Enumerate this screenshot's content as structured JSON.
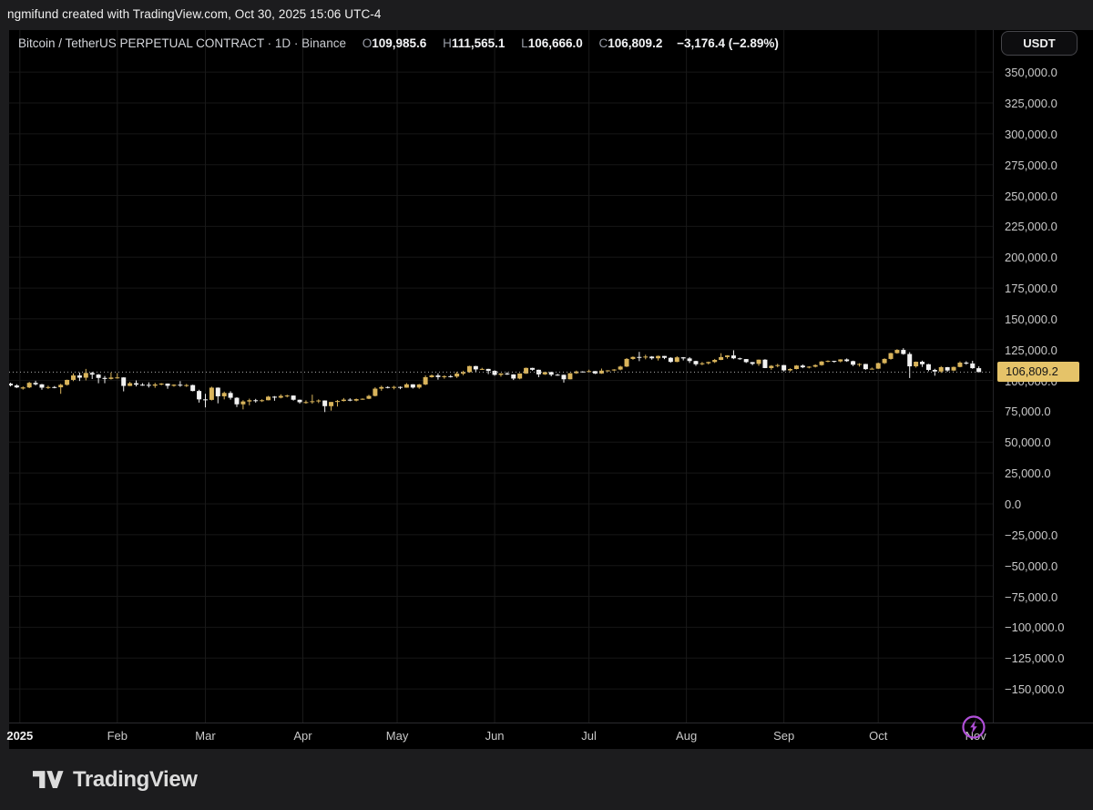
{
  "attribution": "ngmifund created with TradingView.com, Oct 30, 2025 15:06 UTC-4",
  "header": {
    "symbol": "Bitcoin / TetherUS PERPETUAL CONTRACT",
    "separator": "·",
    "interval": "1D",
    "exchange": "Binance",
    "ohlc": {
      "o_label": "O",
      "o": "109,985.6",
      "h_label": "H",
      "h": "111,565.1",
      "l_label": "L",
      "l": "106,666.0",
      "c_label": "C",
      "c": "106,809.2",
      "change": "−3,176.4 (−2.89%)"
    }
  },
  "currency_button": {
    "label": "USDT"
  },
  "price_scale": {
    "labels": [
      "350,000.0",
      "325,000.0",
      "300,000.0",
      "275,000.0",
      "250,000.0",
      "225,000.0",
      "200,000.0",
      "175,000.0",
      "150,000.0",
      "125,000.0",
      "100,000.0",
      "75,000.0",
      "50,000.0",
      "25,000.0",
      "0.0",
      "−25,000.0",
      "−50,000.0",
      "−75,000.0",
      "−100,000.0",
      "−125,000.0",
      "−150,000.0"
    ],
    "current_price_label": "106,809.2"
  },
  "footer": {
    "brand": "TradingView"
  },
  "colors": {
    "up_candle": "#D9B45B",
    "down_candle": "#F2F2F2",
    "price_tag_bg": "#E5C369",
    "grid": "#161616",
    "dotted_price_line": "#ABABAB",
    "boost_purple": "#B04FD8",
    "chart_bg": "#000000",
    "frame_bg": "#1C1C1E"
  },
  "chart_data": {
    "type": "candlestick",
    "title": "Bitcoin / TetherUS PERPETUAL CONTRACT",
    "exchange": "Binance",
    "timeframe": "1D",
    "quote_currency": "USDT",
    "current_price": 106809.2,
    "last_change": -3176.4,
    "last_change_pct": -2.89,
    "price_axis": {
      "min": -150000,
      "max": 350000,
      "step": 25000
    },
    "time_axis_months": [
      {
        "label": "2025",
        "day": 0,
        "major": true
      },
      {
        "label": "Feb",
        "day": 31
      },
      {
        "label": "Mar",
        "day": 59
      },
      {
        "label": "Apr",
        "day": 90
      },
      {
        "label": "May",
        "day": 120
      },
      {
        "label": "Jun",
        "day": 151
      },
      {
        "label": "Jul",
        "day": 181
      },
      {
        "label": "Aug",
        "day": 212
      },
      {
        "label": "Sep",
        "day": 243
      },
      {
        "label": "Oct",
        "day": 273
      },
      {
        "label": "Nov",
        "day": 304
      }
    ],
    "start_date": "2024-12-28",
    "interval_days": 2,
    "candles": [
      [
        97500,
        98200,
        95200,
        96000
      ],
      [
        96000,
        97000,
        93900,
        94400
      ],
      [
        93500,
        95200,
        92600,
        94400
      ],
      [
        94400,
        98900,
        93800,
        98100
      ],
      [
        98100,
        99800,
        96000,
        96900
      ],
      [
        96900,
        97200,
        92500,
        94200
      ],
      [
        94200,
        95800,
        93200,
        94700
      ],
      [
        94700,
        95500,
        93700,
        94500
      ],
      [
        94500,
        97300,
        89200,
        96500
      ],
      [
        96500,
        100700,
        95900,
        100500
      ],
      [
        100500,
        105800,
        99500,
        104100
      ],
      [
        104100,
        106400,
        99600,
        102300
      ],
      [
        102300,
        109400,
        100100,
        106100
      ],
      [
        106100,
        107100,
        101200,
        104800
      ],
      [
        104800,
        105300,
        97800,
        102100
      ],
      [
        102100,
        103700,
        97800,
        101300
      ],
      [
        101300,
        106500,
        100800,
        102400
      ],
      [
        102400,
        106000,
        101500,
        102500
      ],
      [
        102500,
        102600,
        91200,
        95600
      ],
      [
        95600,
        98900,
        95500,
        97800
      ],
      [
        97800,
        100100,
        95200,
        96600
      ],
      [
        96600,
        97900,
        95700,
        96500
      ],
      [
        96500,
        98500,
        94300,
        95800
      ],
      [
        95800,
        98100,
        94100,
        96800
      ],
      [
        96800,
        97900,
        96100,
        97500
      ],
      [
        97500,
        97600,
        93300,
        95700
      ],
      [
        95700,
        96900,
        95000,
        96600
      ],
      [
        96600,
        99500,
        94900,
        96100
      ],
      [
        96100,
        97200,
        94800,
        96300
      ],
      [
        96300,
        96600,
        91200,
        91500
      ],
      [
        91500,
        92500,
        82100,
        84700
      ],
      [
        84700,
        89200,
        78200,
        84300
      ],
      [
        84300,
        95000,
        83800,
        94200
      ],
      [
        94200,
        94400,
        81500,
        87200
      ],
      [
        87200,
        91000,
        84700,
        89900
      ],
      [
        89900,
        91300,
        84500,
        86000
      ],
      [
        86000,
        86500,
        78500,
        80700
      ],
      [
        80700,
        84000,
        76600,
        83000
      ],
      [
        83000,
        85300,
        79900,
        84000
      ],
      [
        84000,
        85100,
        82100,
        83800
      ],
      [
        83800,
        84800,
        82600,
        84000
      ],
      [
        84000,
        87500,
        83900,
        86900
      ],
      [
        86900,
        87400,
        83600,
        86100
      ],
      [
        86100,
        88800,
        85500,
        87500
      ],
      [
        87500,
        88500,
        86300,
        87800
      ],
      [
        87800,
        87900,
        83700,
        84400
      ],
      [
        84400,
        84500,
        81300,
        82400
      ],
      [
        82400,
        83900,
        81200,
        82500
      ],
      [
        82500,
        88500,
        81200,
        83200
      ],
      [
        83200,
        84700,
        81700,
        83800
      ],
      [
        83800,
        83900,
        74400,
        79200
      ],
      [
        79200,
        82600,
        75600,
        82600
      ],
      [
        82600,
        84200,
        78900,
        83400
      ],
      [
        83400,
        85800,
        83000,
        84500
      ],
      [
        84500,
        85600,
        83200,
        83700
      ],
      [
        83700,
        85400,
        83100,
        84900
      ],
      [
        84900,
        85500,
        84300,
        85200
      ],
      [
        85200,
        88400,
        84900,
        87500
      ],
      [
        87500,
        94500,
        87100,
        93400
      ],
      [
        93400,
        95800,
        91700,
        94700
      ],
      [
        94700,
        95300,
        93600,
        94300
      ],
      [
        94300,
        95700,
        92800,
        94800
      ],
      [
        94800,
        95200,
        93000,
        94200
      ],
      [
        94200,
        97900,
        94100,
        96900
      ],
      [
        96900,
        97000,
        93500,
        94300
      ],
      [
        94300,
        97200,
        93300,
        96800
      ],
      [
        96800,
        104100,
        96200,
        102700
      ],
      [
        102700,
        104900,
        102300,
        104100
      ],
      [
        104100,
        105800,
        100700,
        102800
      ],
      [
        102800,
        104200,
        101500,
        103500
      ],
      [
        103500,
        104500,
        102400,
        103200
      ],
      [
        103200,
        107100,
        102100,
        105600
      ],
      [
        105600,
        107900,
        104300,
        106800
      ],
      [
        106800,
        111970,
        106300,
        111700
      ],
      [
        111700,
        111900,
        106800,
        109000
      ],
      [
        109000,
        110300,
        108600,
        109400
      ],
      [
        109400,
        109500,
        105200,
        107800
      ],
      [
        107800,
        108300,
        103900,
        104600
      ],
      [
        104600,
        105900,
        103100,
        105700
      ],
      [
        105700,
        106800,
        104500,
        104900
      ],
      [
        104900,
        105100,
        100400,
        101600
      ],
      [
        101600,
        105900,
        101000,
        105700
      ],
      [
        105700,
        110500,
        105400,
        110200
      ],
      [
        110200,
        110300,
        108000,
        108700
      ],
      [
        108700,
        108800,
        102700,
        105000
      ],
      [
        105000,
        107000,
        104500,
        106800
      ],
      [
        106800,
        107200,
        103400,
        104700
      ],
      [
        104700,
        105400,
        103900,
        104600
      ],
      [
        104600,
        104800,
        98300,
        101000
      ],
      [
        101000,
        106100,
        100900,
        105900
      ],
      [
        105900,
        108000,
        105400,
        107300
      ],
      [
        107300,
        107500,
        106500,
        107100
      ],
      [
        107100,
        108800,
        106700,
        107600
      ],
      [
        107600,
        107700,
        105300,
        105700
      ],
      [
        105700,
        109700,
        105400,
        108000
      ],
      [
        108000,
        108400,
        107300,
        108200
      ],
      [
        108200,
        109200,
        107600,
        108900
      ],
      [
        108900,
        112000,
        108300,
        111300
      ],
      [
        111300,
        118200,
        110900,
        117500
      ],
      [
        117500,
        119500,
        116800,
        119100
      ],
      [
        119100,
        123200,
        115700,
        118700
      ],
      [
        118700,
        120900,
        117200,
        119400
      ],
      [
        119400,
        119800,
        116900,
        118000
      ],
      [
        118000,
        120200,
        116200,
        119900
      ],
      [
        119900,
        119900,
        117300,
        118400
      ],
      [
        118400,
        118900,
        114500,
        115100
      ],
      [
        115100,
        119700,
        114800,
        118800
      ],
      [
        118800,
        119000,
        116300,
        117900
      ],
      [
        117900,
        118900,
        114200,
        115800
      ],
      [
        115800,
        116000,
        111900,
        113200
      ],
      [
        113200,
        115000,
        112400,
        114000
      ],
      [
        114000,
        115300,
        113000,
        115000
      ],
      [
        115000,
        117500,
        114200,
        116700
      ],
      [
        116700,
        122100,
        116500,
        119000
      ],
      [
        119000,
        120500,
        117700,
        120300
      ],
      [
        120300,
        124500,
        117300,
        118000
      ],
      [
        118000,
        118500,
        116800,
        117400
      ],
      [
        117400,
        117400,
        114200,
        114900
      ],
      [
        114900,
        115000,
        112400,
        113500
      ],
      [
        113500,
        117000,
        111900,
        116900
      ],
      [
        116900,
        117300,
        110000,
        110100
      ],
      [
        110100,
        112500,
        108700,
        111900
      ],
      [
        111900,
        113500,
        110700,
        112500
      ],
      [
        112500,
        112600,
        107300,
        108200
      ],
      [
        108200,
        109900,
        107300,
        109300
      ],
      [
        109300,
        112500,
        109000,
        112100
      ],
      [
        112100,
        113000,
        110000,
        110700
      ],
      [
        110700,
        111600,
        109800,
        111200
      ],
      [
        111200,
        113100,
        110600,
        112500
      ],
      [
        112500,
        115800,
        112000,
        115400
      ],
      [
        115400,
        116300,
        114800,
        115900
      ],
      [
        115900,
        116000,
        114500,
        115500
      ],
      [
        115500,
        117300,
        114700,
        117100
      ],
      [
        117100,
        117900,
        115100,
        115700
      ],
      [
        115700,
        116100,
        111700,
        112800
      ],
      [
        112800,
        114000,
        111300,
        113400
      ],
      [
        113400,
        113500,
        108700,
        109200
      ],
      [
        109200,
        110500,
        108900,
        109600
      ],
      [
        109600,
        114500,
        109400,
        114100
      ],
      [
        114100,
        118000,
        113400,
        117500
      ],
      [
        117500,
        122500,
        116900,
        122200
      ],
      [
        122200,
        125400,
        121700,
        124800
      ],
      [
        124800,
        126200,
        120900,
        121500
      ],
      [
        121500,
        123000,
        102000,
        111500
      ],
      [
        111500,
        115400,
        110500,
        115200
      ],
      [
        115200,
        116100,
        111000,
        113200
      ],
      [
        113200,
        113500,
        107500,
        108600
      ],
      [
        108600,
        109500,
        103900,
        107300
      ],
      [
        107300,
        111700,
        106200,
        110800
      ],
      [
        110800,
        111000,
        107000,
        108100
      ],
      [
        108100,
        111300,
        107600,
        111000
      ],
      [
        111000,
        115500,
        110700,
        114500
      ],
      [
        114500,
        115600,
        112800,
        113800
      ],
      [
        113800,
        116000,
        109500,
        110000
      ],
      [
        109985.6,
        111565.1,
        106666.0,
        106809.2
      ]
    ]
  }
}
